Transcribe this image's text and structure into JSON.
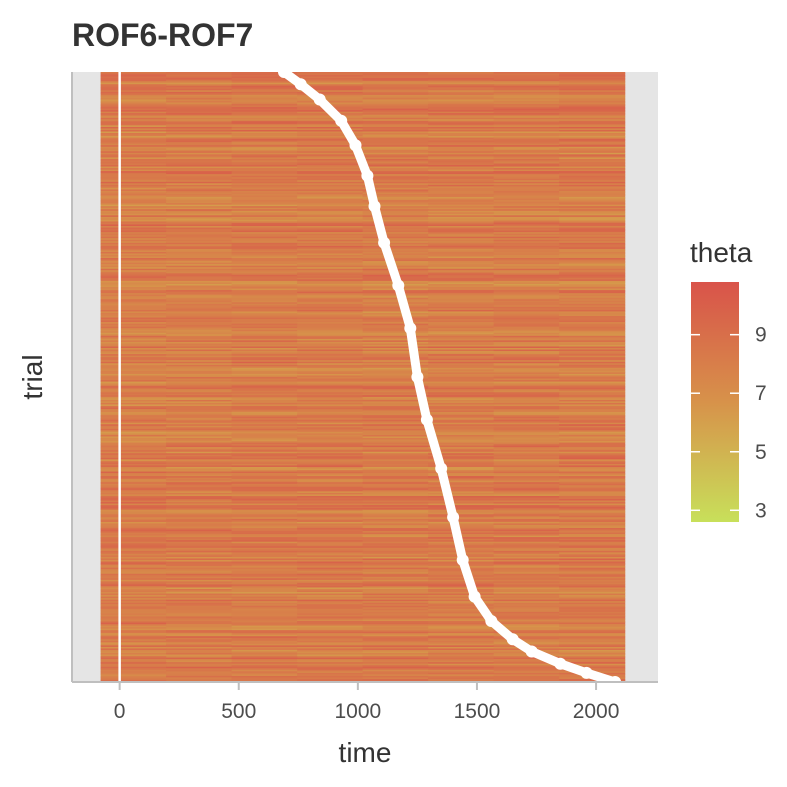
{
  "chart_data": {
    "type": "heatmap",
    "title": "ROF6-ROF7",
    "xlabel": "time",
    "ylabel": "trial",
    "xlim": [
      -200,
      2260
    ],
    "x_ticks": [
      0,
      500,
      1000,
      1500,
      2000
    ],
    "x_tick_labels": [
      "0",
      "500",
      "1000",
      "1500",
      "2000"
    ],
    "time_range": [
      -80,
      2120
    ],
    "n_trials": 400,
    "vertical_line_x": 0,
    "y_ticks_shown": false,
    "legend": {
      "title": "theta",
      "placement": "right",
      "range": [
        2.6,
        10.8
      ],
      "ticks": [
        3,
        5,
        7,
        9
      ],
      "tick_labels": [
        "3",
        "5",
        "7",
        "9"
      ],
      "color_low": "#c8e05a",
      "color_mid": "#d7924a",
      "color_high": "#d9534a"
    },
    "colors": {
      "panel_background": "#e5e5e5",
      "event_marker": "#ffffff",
      "axis_line": "#bfbfbf"
    },
    "event_curve": [
      {
        "trial_fraction": 0.0,
        "time": 690
      },
      {
        "trial_fraction": 0.02,
        "time": 760
      },
      {
        "trial_fraction": 0.045,
        "time": 840
      },
      {
        "trial_fraction": 0.08,
        "time": 930
      },
      {
        "trial_fraction": 0.12,
        "time": 990
      },
      {
        "trial_fraction": 0.17,
        "time": 1040
      },
      {
        "trial_fraction": 0.22,
        "time": 1070
      },
      {
        "trial_fraction": 0.28,
        "time": 1110
      },
      {
        "trial_fraction": 0.35,
        "time": 1170
      },
      {
        "trial_fraction": 0.42,
        "time": 1220
      },
      {
        "trial_fraction": 0.5,
        "time": 1250
      },
      {
        "trial_fraction": 0.57,
        "time": 1290
      },
      {
        "trial_fraction": 0.65,
        "time": 1350
      },
      {
        "trial_fraction": 0.73,
        "time": 1400
      },
      {
        "trial_fraction": 0.8,
        "time": 1440
      },
      {
        "trial_fraction": 0.86,
        "time": 1490
      },
      {
        "trial_fraction": 0.9,
        "time": 1560
      },
      {
        "trial_fraction": 0.93,
        "time": 1650
      },
      {
        "trial_fraction": 0.95,
        "time": 1730
      },
      {
        "trial_fraction": 0.97,
        "time": 1850
      },
      {
        "trial_fraction": 0.985,
        "time": 1960
      },
      {
        "trial_fraction": 1.0,
        "time": 2080
      }
    ]
  }
}
